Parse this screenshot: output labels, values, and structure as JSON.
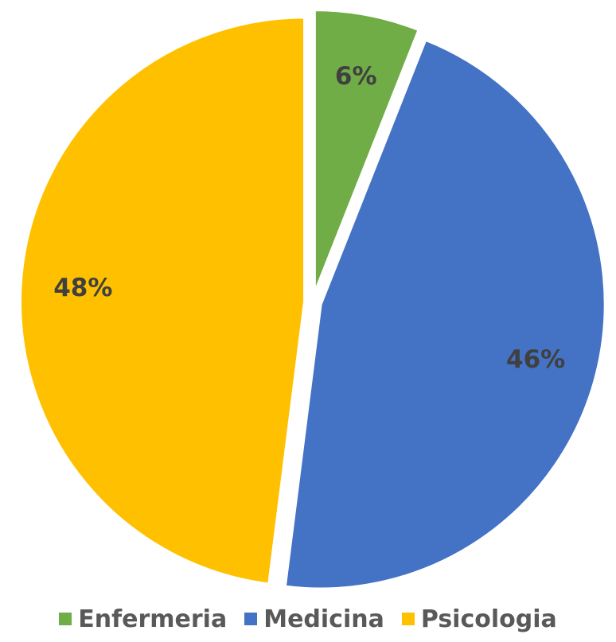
{
  "chart_data": {
    "type": "pie",
    "categories": [
      "Enfermeria",
      "Medicina",
      "Psicologia"
    ],
    "values": [
      6,
      46,
      48
    ],
    "labels": [
      "6%",
      "46%",
      "48%"
    ],
    "colors": [
      "#70AD47",
      "#4472C4",
      "#FFC000"
    ],
    "exploded": true,
    "start_angle_deg": 0,
    "direction": "clockwise",
    "legend_position": "bottom",
    "title": ""
  },
  "legend": {
    "items": [
      {
        "label": "Enfermeria",
        "color": "#70AD47"
      },
      {
        "label": "Medicina",
        "color": "#4472C4"
      },
      {
        "label": "Psicologia",
        "color": "#FFC000"
      }
    ]
  }
}
